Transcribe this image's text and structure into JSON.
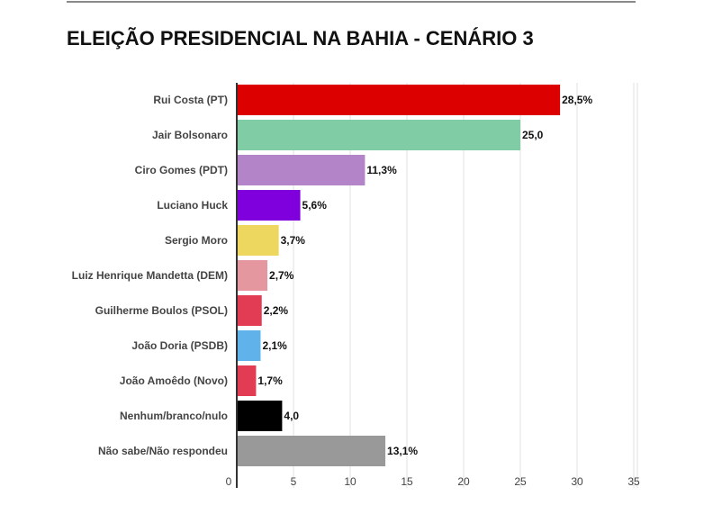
{
  "chart_data": {
    "type": "bar",
    "orientation": "horizontal",
    "title": "ELEIÇÃO PRESIDENCIAL NA BAHIA - CENÁRIO 3",
    "xlabel": "",
    "ylabel": "",
    "categories": [
      "Rui Costa (PT)",
      "Jair Bolsonaro",
      "Ciro Gomes (PDT)",
      "Luciano Huck",
      "Sergio Moro",
      "Luiz Henrique Mandetta (DEM)",
      "Guilherme Boulos (PSOL)",
      "João Doria (PSDB)",
      "João Amoêdo (Novo)",
      "Nenhum/branco/nulo",
      "Não sabe/Não respondeu"
    ],
    "values": [
      28.5,
      25.0,
      11.3,
      5.6,
      3.7,
      2.7,
      2.2,
      2.1,
      1.7,
      4.0,
      13.1
    ],
    "value_labels": [
      "28,5%",
      "25,0",
      "11,3%",
      "5,6%",
      "3,7%",
      "2,7%",
      "2,2%",
      "2,1%",
      "1,7%",
      "4,0",
      "13,1%"
    ],
    "colors": [
      "#dd0000",
      "#80cda5",
      "#b384c8",
      "#8000dd",
      "#eed75e",
      "#e4979e",
      "#e23c55",
      "#5fb3ea",
      "#e23c55",
      "#000000",
      "#999999"
    ],
    "xlim": [
      0,
      35
    ],
    "xticks": [
      0,
      5,
      10,
      15,
      20,
      25,
      30,
      35
    ],
    "grid": true,
    "legend": "none"
  }
}
